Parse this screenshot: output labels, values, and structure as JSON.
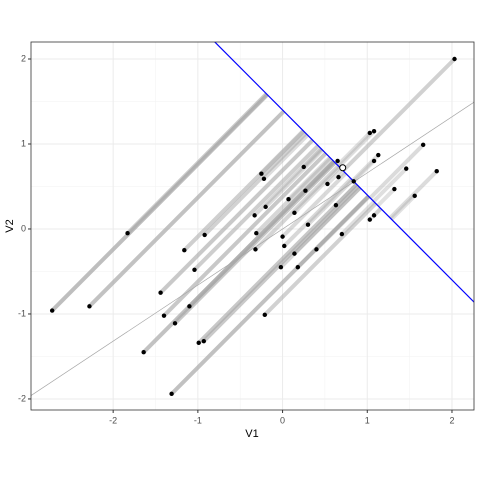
{
  "chart_data": {
    "type": "scatter",
    "xlabel": "V1",
    "ylabel": "V2",
    "x": [
      -2.72,
      -1.83,
      -2.28,
      -1.44,
      -1.4,
      -1.27,
      -1.16,
      -0.92,
      -1.04,
      -1.1,
      -1.64,
      -0.99,
      -0.93,
      -1.31,
      -0.25,
      -0.22,
      -0.33,
      -0.2,
      -0.31,
      -0.32,
      -0.21,
      0,
      0.02,
      0.07,
      0.14,
      0.25,
      0.27,
      0.3,
      0.14,
      0.18,
      -0.02,
      0.4,
      0.53,
      0.63,
      0.65,
      0.66,
      0.7,
      0.84,
      1.03,
      1.08,
      1.13,
      1.08,
      1.03,
      1.08,
      1.32,
      1.46,
      1.66,
      1.82,
      1.56,
      2.03
    ],
    "values": [
      -0.96,
      -0.05,
      -0.91,
      -0.75,
      -1.02,
      -1.11,
      -0.25,
      -0.07,
      -0.48,
      -0.91,
      -1.45,
      -1.34,
      -1.32,
      -1.94,
      0.65,
      0.59,
      0.16,
      0.26,
      -0.05,
      -0.24,
      -1.01,
      -0.09,
      -0.2,
      0.35,
      0.19,
      0.73,
      0.45,
      0.05,
      -0.29,
      -0.45,
      -0.45,
      -0.24,
      0.53,
      0.28,
      0.8,
      0.61,
      -0.06,
      0.56,
      1.13,
      1.15,
      0.87,
      0.8,
      0.11,
      0.16,
      0.47,
      0.71,
      0.99,
      0.68,
      0.39,
      2.0
    ],
    "color": "#000000",
    "projection_color": "#a6a6a6",
    "lines": [
      {
        "slope": -1,
        "intercept": 1.4,
        "color": "#0000ff"
      },
      {
        "slope": 0.66,
        "intercept": 0,
        "color": "#a6a6a6"
      }
    ],
    "highlight": {
      "x": 0.71,
      "y": 0.72
    },
    "xlim": [
      -2.97,
      2.26
    ],
    "ylim": [
      -2.13,
      2.2
    ],
    "xticks": [
      -2,
      -1,
      0,
      1,
      2
    ],
    "yticks": [
      -2,
      -1,
      0,
      1,
      2
    ],
    "grid": true
  }
}
